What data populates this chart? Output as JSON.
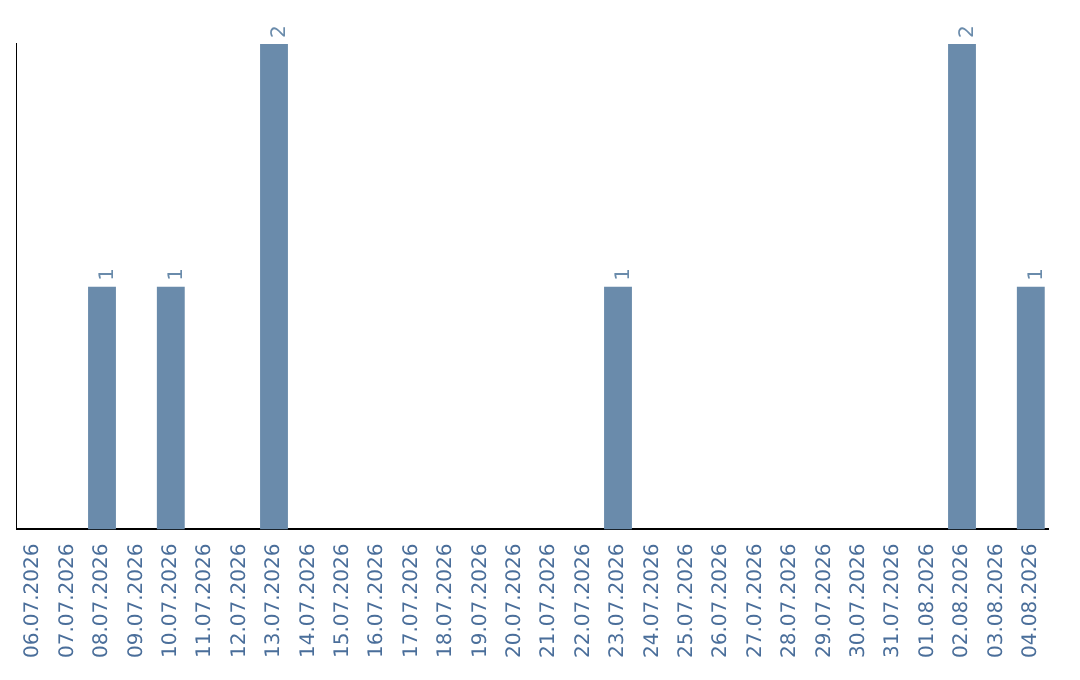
{
  "chart_data": {
    "type": "bar",
    "categories": [
      "06.07.2026",
      "07.07.2026",
      "08.07.2026",
      "09.07.2026",
      "10.07.2026",
      "11.07.2026",
      "12.07.2026",
      "13.07.2026",
      "14.07.2026",
      "15.07.2026",
      "16.07.2026",
      "17.07.2026",
      "18.07.2026",
      "19.07.2026",
      "20.07.2026",
      "21.07.2026",
      "22.07.2026",
      "23.07.2026",
      "24.07.2026",
      "25.07.2026",
      "26.07.2026",
      "27.07.2026",
      "28.07.2026",
      "29.07.2026",
      "30.07.2026",
      "31.07.2026",
      "01.08.2026",
      "02.08.2026",
      "03.08.2026",
      "04.08.2026"
    ],
    "values": [
      0,
      0,
      1,
      0,
      1,
      0,
      0,
      2,
      0,
      0,
      0,
      0,
      0,
      0,
      0,
      0,
      0,
      1,
      0,
      0,
      0,
      0,
      0,
      0,
      0,
      0,
      0,
      2,
      0,
      1
    ],
    "value_labels": [
      null,
      null,
      "1",
      null,
      "1",
      null,
      null,
      "2",
      null,
      null,
      null,
      null,
      null,
      null,
      null,
      null,
      null,
      "1",
      null,
      null,
      null,
      null,
      null,
      null,
      null,
      null,
      null,
      "2",
      null,
      "1"
    ],
    "color": "#6a8bab",
    "grid": false,
    "legend": false,
    "tick_labels": "x"
  }
}
